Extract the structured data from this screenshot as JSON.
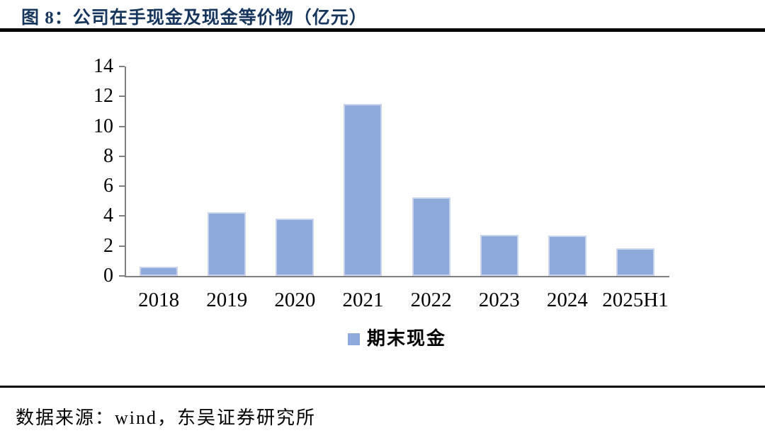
{
  "header": {
    "title": "图 8：公司在手现金及现金等价物（亿元）"
  },
  "chart_data": {
    "type": "bar",
    "title": "公司在手现金及现金等价物（亿元）",
    "categories": [
      "2018",
      "2019",
      "2020",
      "2021",
      "2022",
      "2023",
      "2024",
      "2025H1"
    ],
    "series": [
      {
        "name": "期末现金",
        "values": [
          0.6,
          4.25,
          3.85,
          11.5,
          5.25,
          2.75,
          2.7,
          1.85
        ]
      }
    ],
    "xlabel": "",
    "ylabel": "",
    "ylim": [
      0,
      14
    ],
    "y_ticks": [
      0,
      2,
      4,
      6,
      8,
      10,
      12,
      14
    ],
    "grid": false,
    "legend_position": "bottom",
    "bar_color": "#8EA9DB",
    "axis_color": "#7F7F7F"
  },
  "footer": {
    "source": "数据来源：wind，东吴证券研究所"
  }
}
